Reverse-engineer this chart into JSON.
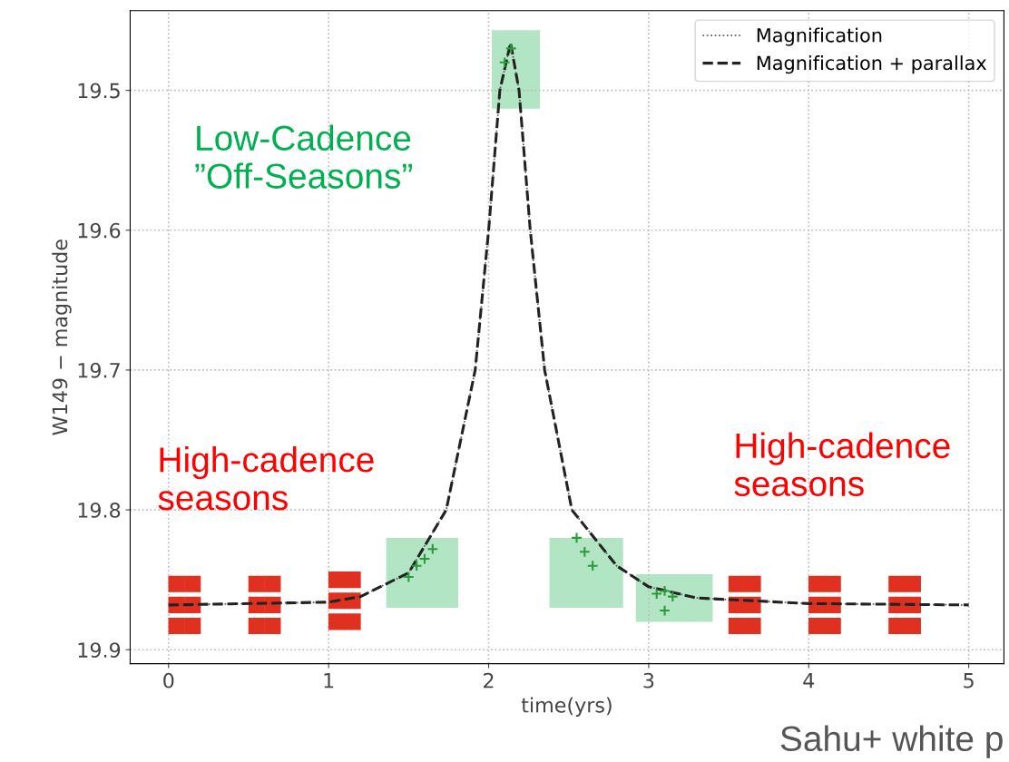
{
  "chart_data": {
    "type": "line",
    "xlabel": "time(yrs)",
    "ylabel": "W149 − magnitude",
    "xlim": [
      -0.24,
      5.22
    ],
    "ylim": [
      19.91,
      19.443
    ],
    "xticks": [
      0,
      1,
      2,
      3,
      4,
      5
    ],
    "yticks": [
      19.5,
      19.6,
      19.7,
      19.8,
      19.9
    ],
    "grid": true,
    "legend": "top right",
    "series": [
      {
        "name": "Magnification",
        "color": "#555555",
        "line_style": "dotted",
        "marker": "none",
        "x": [
          0,
          1,
          1.2,
          1.5,
          1.735,
          1.916,
          2.0,
          2.07,
          2.137,
          2.19,
          2.26,
          2.35,
          2.52,
          2.8,
          3.0,
          3.3,
          4,
          5
        ],
        "values": [
          19.868,
          19.866,
          19.862,
          19.845,
          19.8,
          19.7,
          19.6,
          19.5,
          19.466,
          19.5,
          19.6,
          19.7,
          19.8,
          19.84,
          19.855,
          19.863,
          19.867,
          19.868
        ]
      },
      {
        "name": "Magnification + parallax",
        "color": "#222222",
        "line_style": "dashed",
        "marker": "none",
        "x": [
          0,
          1,
          1.2,
          1.5,
          1.735,
          1.916,
          2.0,
          2.07,
          2.137,
          2.19,
          2.26,
          2.35,
          2.52,
          2.8,
          3.0,
          3.3,
          4,
          5
        ],
        "values": [
          19.868,
          19.866,
          19.862,
          19.845,
          19.8,
          19.7,
          19.6,
          19.5,
          19.466,
          19.5,
          19.6,
          19.7,
          19.8,
          19.84,
          19.855,
          19.863,
          19.867,
          19.868
        ]
      },
      {
        "type": "scatter",
        "color": "#e03020",
        "marker": "square",
        "x": [
          0.05,
          0.15,
          0.05,
          0.15,
          0.05,
          0.15,
          0.55,
          0.65,
          0.55,
          0.65,
          0.55,
          0.65,
          1.05,
          1.15,
          1.05,
          1.15,
          1.05,
          1.15,
          3.55,
          3.65,
          3.55,
          3.65,
          3.55,
          3.65,
          4.05,
          4.15,
          4.05,
          4.15,
          4.05,
          4.15,
          4.55,
          4.65,
          4.55,
          4.65,
          4.55,
          4.65
        ],
        "values": [
          19.853,
          19.853,
          19.868,
          19.868,
          19.883,
          19.883,
          19.853,
          19.853,
          19.868,
          19.868,
          19.883,
          19.883,
          19.85,
          19.85,
          19.865,
          19.865,
          19.88,
          19.88,
          19.853,
          19.853,
          19.868,
          19.868,
          19.883,
          19.883,
          19.853,
          19.853,
          19.868,
          19.868,
          19.883,
          19.883,
          19.853,
          19.853,
          19.868,
          19.868,
          19.883,
          19.883
        ]
      },
      {
        "type": "scatter",
        "color": "#2a9a3a",
        "marker": "cross",
        "x": [
          1.5,
          1.55,
          1.6,
          1.65,
          2.1,
          2.14,
          2.55,
          2.6,
          2.65,
          3.05,
          3.1,
          3.15,
          3.1
        ],
        "values": [
          19.848,
          19.84,
          19.835,
          19.828,
          19.48,
          19.47,
          19.82,
          19.83,
          19.84,
          19.86,
          19.858,
          19.862,
          19.872
        ]
      }
    ],
    "annotations": [
      "Low-Cadence\n”Off-Seasons”",
      "High-cadence\nseasons",
      "High-cadence\nseasons",
      "Sahu+ white p"
    ]
  }
}
